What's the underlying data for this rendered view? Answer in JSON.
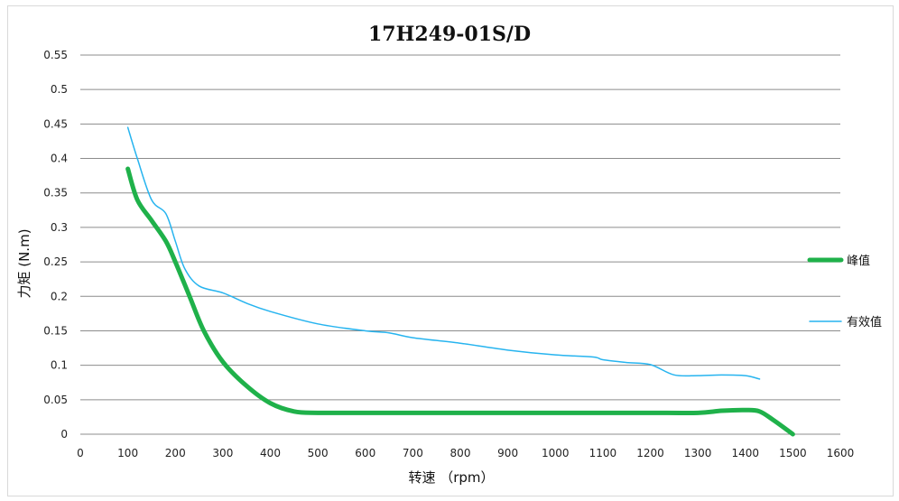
{
  "chart_data": {
    "type": "line",
    "title": "17H249-01S/D",
    "xlabel": "转速  （rpm）",
    "ylabel": "力矩 (N.m)",
    "xlim": [
      0,
      1600
    ],
    "ylim": [
      0,
      0.55
    ],
    "x_ticks": [
      "0",
      "100",
      "200",
      "300",
      "400",
      "500",
      "600",
      "700",
      "800",
      "900",
      "1000",
      "1100",
      "1200",
      "1300",
      "1400",
      "1500",
      "1600"
    ],
    "y_ticks": [
      "0",
      "0.05",
      "0.1",
      "0.15",
      "0.2",
      "0.25",
      "0.3",
      "0.35",
      "0.4",
      "0.45",
      "0.5",
      "0.55"
    ],
    "grid": true,
    "legend_position": "right",
    "series": [
      {
        "name": "峰值",
        "color": "#1fb14a",
        "points": [
          [
            100,
            0.385
          ],
          [
            120,
            0.34
          ],
          [
            150,
            0.31
          ],
          [
            180,
            0.28
          ],
          [
            200,
            0.25
          ],
          [
            230,
            0.2
          ],
          [
            260,
            0.15
          ],
          [
            300,
            0.105
          ],
          [
            350,
            0.07
          ],
          [
            400,
            0.045
          ],
          [
            450,
            0.033
          ],
          [
            500,
            0.031
          ],
          [
            600,
            0.031
          ],
          [
            700,
            0.031
          ],
          [
            800,
            0.031
          ],
          [
            900,
            0.031
          ],
          [
            1000,
            0.031
          ],
          [
            1100,
            0.031
          ],
          [
            1200,
            0.031
          ],
          [
            1300,
            0.031
          ],
          [
            1350,
            0.034
          ],
          [
            1400,
            0.035
          ],
          [
            1430,
            0.033
          ],
          [
            1460,
            0.02
          ],
          [
            1500,
            0.0
          ]
        ]
      },
      {
        "name": "有效值",
        "color": "#27b4ef",
        "points": [
          [
            100,
            0.445
          ],
          [
            120,
            0.4
          ],
          [
            150,
            0.34
          ],
          [
            180,
            0.32
          ],
          [
            200,
            0.28
          ],
          [
            220,
            0.24
          ],
          [
            250,
            0.215
          ],
          [
            300,
            0.205
          ],
          [
            350,
            0.19
          ],
          [
            400,
            0.178
          ],
          [
            500,
            0.16
          ],
          [
            600,
            0.15
          ],
          [
            650,
            0.147
          ],
          [
            700,
            0.14
          ],
          [
            800,
            0.132
          ],
          [
            900,
            0.122
          ],
          [
            1000,
            0.115
          ],
          [
            1080,
            0.112
          ],
          [
            1100,
            0.108
          ],
          [
            1150,
            0.104
          ],
          [
            1200,
            0.101
          ],
          [
            1250,
            0.086
          ],
          [
            1300,
            0.085
          ],
          [
            1350,
            0.086
          ],
          [
            1400,
            0.085
          ],
          [
            1430,
            0.08
          ]
        ]
      }
    ]
  }
}
